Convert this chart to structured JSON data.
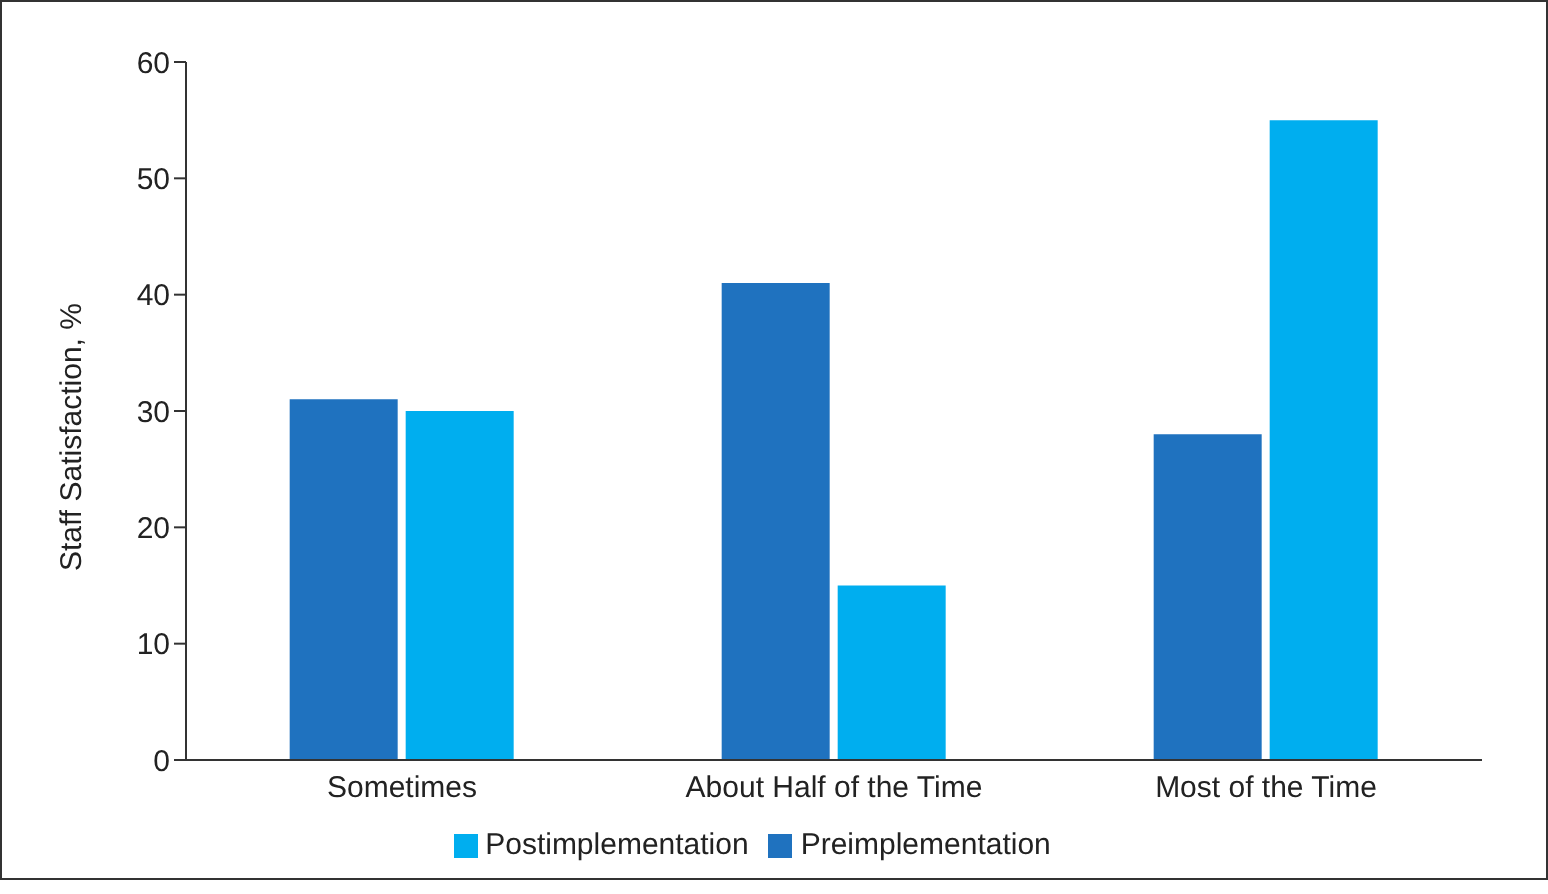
{
  "chart_data": {
    "type": "bar",
    "ylabel": "Staff Satisfaction, %",
    "categories": [
      "Sometimes",
      "About Half of the Time",
      "Most of the Time"
    ],
    "series": [
      {
        "name": "Preimplementation",
        "color": "#1f72bf",
        "values": [
          31,
          41,
          28
        ]
      },
      {
        "name": "Postimplementation",
        "color": "#00aeef",
        "values": [
          30,
          15,
          55
        ]
      }
    ],
    "ylim": [
      0,
      60
    ],
    "yticks": [
      0,
      10,
      20,
      30,
      40,
      50,
      60
    ],
    "grid": false,
    "legend": "bottom"
  }
}
